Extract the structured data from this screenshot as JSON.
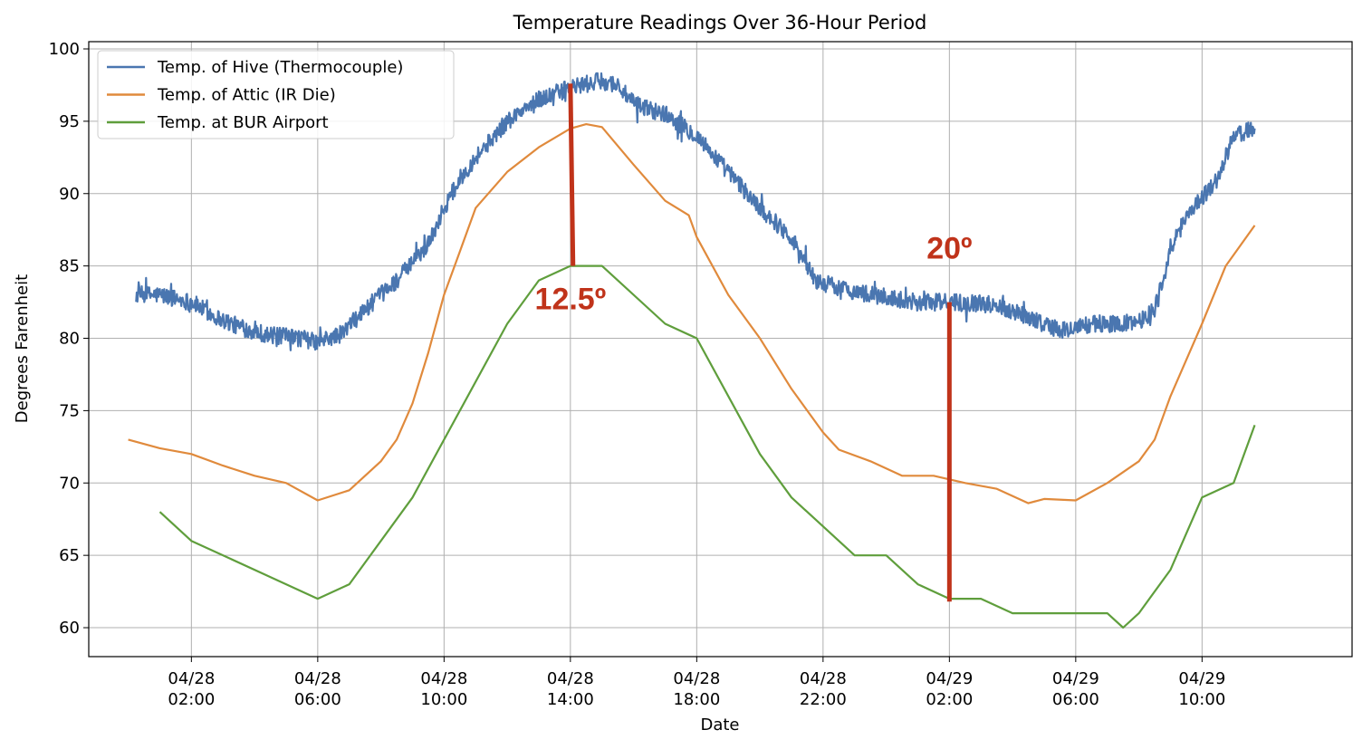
{
  "chart_data": {
    "type": "line",
    "title": "Temperature Readings Over 36-Hour Period",
    "xlabel": "Date",
    "ylabel": "Degrees Farenheit",
    "x_unit": "datetime",
    "xlim": [
      "2018-04-27 22:45",
      "2018-04-29 14:45"
    ],
    "ylim": [
      58,
      100.5
    ],
    "y_ticks": [
      60,
      65,
      70,
      75,
      80,
      85,
      90,
      95,
      100
    ],
    "x_ticks": [
      {
        "t": "2018-04-28 02:00",
        "label": [
          "04/28",
          "02:00"
        ]
      },
      {
        "t": "2018-04-28 06:00",
        "label": [
          "04/28",
          "06:00"
        ]
      },
      {
        "t": "2018-04-28 10:00",
        "label": [
          "04/28",
          "10:00"
        ]
      },
      {
        "t": "2018-04-28 14:00",
        "label": [
          "04/28",
          "14:00"
        ]
      },
      {
        "t": "2018-04-28 18:00",
        "label": [
          "04/28",
          "18:00"
        ]
      },
      {
        "t": "2018-04-28 22:00",
        "label": [
          "04/28",
          "22:00"
        ]
      },
      {
        "t": "2018-04-29 02:00",
        "label": [
          "04/29",
          "02:00"
        ]
      },
      {
        "t": "2018-04-29 06:00",
        "label": [
          "04/29",
          "06:00"
        ]
      },
      {
        "t": "2018-04-29 10:00",
        "label": [
          "04/29",
          "10:00"
        ]
      }
    ],
    "grid": true,
    "legend_position": "top-left",
    "series": [
      {
        "name": "Temp. of Hive (Thermocouple)",
        "color": "#4a76b0",
        "noisy": true,
        "noise_amplitude": 0.6,
        "points": [
          [
            "2018-04-28 00:15",
            83.0
          ],
          [
            "2018-04-28 01:00",
            83.0
          ],
          [
            "2018-04-28 02:00",
            82.5
          ],
          [
            "2018-04-28 02:45",
            81.5
          ],
          [
            "2018-04-28 03:30",
            80.8
          ],
          [
            "2018-04-28 04:30",
            80.2
          ],
          [
            "2018-04-28 05:30",
            80.0
          ],
          [
            "2018-04-28 06:00",
            79.7
          ],
          [
            "2018-04-28 06:45",
            80.3
          ],
          [
            "2018-04-28 07:30",
            82.0
          ],
          [
            "2018-04-28 08:30",
            84.0
          ],
          [
            "2018-04-28 09:30",
            86.5
          ],
          [
            "2018-04-28 10:00",
            89.0
          ],
          [
            "2018-04-28 10:30",
            91.0
          ],
          [
            "2018-04-28 11:00",
            92.5
          ],
          [
            "2018-04-28 12:00",
            95.0
          ],
          [
            "2018-04-28 13:00",
            96.5
          ],
          [
            "2018-04-28 14:00",
            97.3
          ],
          [
            "2018-04-28 15:00",
            97.8
          ],
          [
            "2018-04-28 15:30",
            97.5
          ],
          [
            "2018-04-28 16:00",
            96.2
          ],
          [
            "2018-04-28 17:00",
            95.5
          ],
          [
            "2018-04-28 18:00",
            94.0
          ],
          [
            "2018-04-28 19:00",
            91.5
          ],
          [
            "2018-04-28 20:00",
            89.0
          ],
          [
            "2018-04-28 21:00",
            87.0
          ],
          [
            "2018-04-28 21:45",
            84.0
          ],
          [
            "2018-04-28 22:30",
            83.5
          ],
          [
            "2018-04-28 23:30",
            83.0
          ],
          [
            "2018-04-29 01:00",
            82.5
          ],
          [
            "2018-04-29 02:30",
            82.5
          ],
          [
            "2018-04-29 03:30",
            82.3
          ],
          [
            "2018-04-29 04:30",
            81.5
          ],
          [
            "2018-04-29 05:30",
            80.5
          ],
          [
            "2018-04-29 06:30",
            81.0
          ],
          [
            "2018-04-29 07:30",
            81.0
          ],
          [
            "2018-04-29 08:00",
            81.2
          ],
          [
            "2018-04-29 08:30",
            82.0
          ],
          [
            "2018-04-29 09:00",
            86.0
          ],
          [
            "2018-04-29 09:30",
            88.5
          ],
          [
            "2018-04-29 10:30",
            91.0
          ],
          [
            "2018-04-29 11:00",
            94.0
          ],
          [
            "2018-04-29 11:40",
            94.5
          ]
        ]
      },
      {
        "name": "Temp. of Attic (IR Die)",
        "color": "#e08a3c",
        "noisy": false,
        "points": [
          [
            "2018-04-28 00:00",
            73.0
          ],
          [
            "2018-04-28 01:00",
            72.4
          ],
          [
            "2018-04-28 02:00",
            72.0
          ],
          [
            "2018-04-28 03:00",
            71.2
          ],
          [
            "2018-04-28 04:00",
            70.5
          ],
          [
            "2018-04-28 05:00",
            70.0
          ],
          [
            "2018-04-28 06:00",
            68.8
          ],
          [
            "2018-04-28 07:00",
            69.5
          ],
          [
            "2018-04-28 08:00",
            71.5
          ],
          [
            "2018-04-28 08:30",
            73.0
          ],
          [
            "2018-04-28 09:00",
            75.5
          ],
          [
            "2018-04-28 09:30",
            79.0
          ],
          [
            "2018-04-28 10:00",
            83.0
          ],
          [
            "2018-04-28 10:30",
            86.0
          ],
          [
            "2018-04-28 11:00",
            89.0
          ],
          [
            "2018-04-28 12:00",
            91.5
          ],
          [
            "2018-04-28 13:00",
            93.2
          ],
          [
            "2018-04-28 14:00",
            94.5
          ],
          [
            "2018-04-28 14:30",
            94.8
          ],
          [
            "2018-04-28 15:00",
            94.6
          ],
          [
            "2018-04-28 16:00",
            92.0
          ],
          [
            "2018-04-28 17:00",
            89.5
          ],
          [
            "2018-04-28 17:45",
            88.5
          ],
          [
            "2018-04-28 18:00",
            87.0
          ],
          [
            "2018-04-28 19:00",
            83.0
          ],
          [
            "2018-04-28 20:00",
            80.0
          ],
          [
            "2018-04-28 21:00",
            76.5
          ],
          [
            "2018-04-28 22:00",
            73.5
          ],
          [
            "2018-04-28 22:30",
            72.3
          ],
          [
            "2018-04-28 23:30",
            71.5
          ],
          [
            "2018-04-29 00:30",
            70.5
          ],
          [
            "2018-04-29 01:30",
            70.5
          ],
          [
            "2018-04-29 02:30",
            70.0
          ],
          [
            "2018-04-29 03:30",
            69.6
          ],
          [
            "2018-04-29 04:30",
            68.6
          ],
          [
            "2018-04-29 05:00",
            68.9
          ],
          [
            "2018-04-29 06:00",
            68.8
          ],
          [
            "2018-04-29 07:00",
            70.0
          ],
          [
            "2018-04-29 08:00",
            71.5
          ],
          [
            "2018-04-29 08:30",
            73.0
          ],
          [
            "2018-04-29 09:00",
            76.0
          ],
          [
            "2018-04-29 10:00",
            81.0
          ],
          [
            "2018-04-29 10:45",
            85.0
          ],
          [
            "2018-04-29 11:40",
            87.8
          ]
        ]
      },
      {
        "name": "Temp. at BUR Airport",
        "color": "#5f9e3c",
        "noisy": false,
        "points": [
          [
            "2018-04-28 01:00",
            68
          ],
          [
            "2018-04-28 02:00",
            66
          ],
          [
            "2018-04-28 06:00",
            62
          ],
          [
            "2018-04-28 07:00",
            63
          ],
          [
            "2018-04-28 09:00",
            69
          ],
          [
            "2018-04-28 12:00",
            81
          ],
          [
            "2018-04-28 13:00",
            84
          ],
          [
            "2018-04-28 14:00",
            85
          ],
          [
            "2018-04-28 15:00",
            85
          ],
          [
            "2018-04-28 17:00",
            81
          ],
          [
            "2018-04-28 18:00",
            80
          ],
          [
            "2018-04-28 20:00",
            72
          ],
          [
            "2018-04-28 21:00",
            69
          ],
          [
            "2018-04-28 23:00",
            65
          ],
          [
            "2018-04-29 00:00",
            65
          ],
          [
            "2018-04-29 01:00",
            63
          ],
          [
            "2018-04-29 02:00",
            62
          ],
          [
            "2018-04-29 03:00",
            62
          ],
          [
            "2018-04-29 04:00",
            61
          ],
          [
            "2018-04-29 06:00",
            61
          ],
          [
            "2018-04-29 07:00",
            61
          ],
          [
            "2018-04-29 07:30",
            60
          ],
          [
            "2018-04-29 08:00",
            61
          ],
          [
            "2018-04-29 09:00",
            64
          ],
          [
            "2018-04-29 10:00",
            69
          ],
          [
            "2018-04-29 11:00",
            70
          ],
          [
            "2018-04-29 11:40",
            74
          ]
        ]
      }
    ],
    "annotations": [
      {
        "text": "12.5º",
        "color": "#c0331a",
        "line": {
          "x1": "2018-04-28 14:00",
          "y1": 97.6,
          "x2": "2018-04-28 14:05",
          "y2": 85.0
        },
        "label_at": [
          "2018-04-28 14:00",
          82.0
        ]
      },
      {
        "text": "20º",
        "color": "#c0331a",
        "line": {
          "x1": "2018-04-29 02:00",
          "y1": 82.5,
          "x2": "2018-04-29 02:00",
          "y2": 61.8
        },
        "label_at": [
          "2018-04-29 02:00",
          85.5
        ]
      }
    ]
  }
}
